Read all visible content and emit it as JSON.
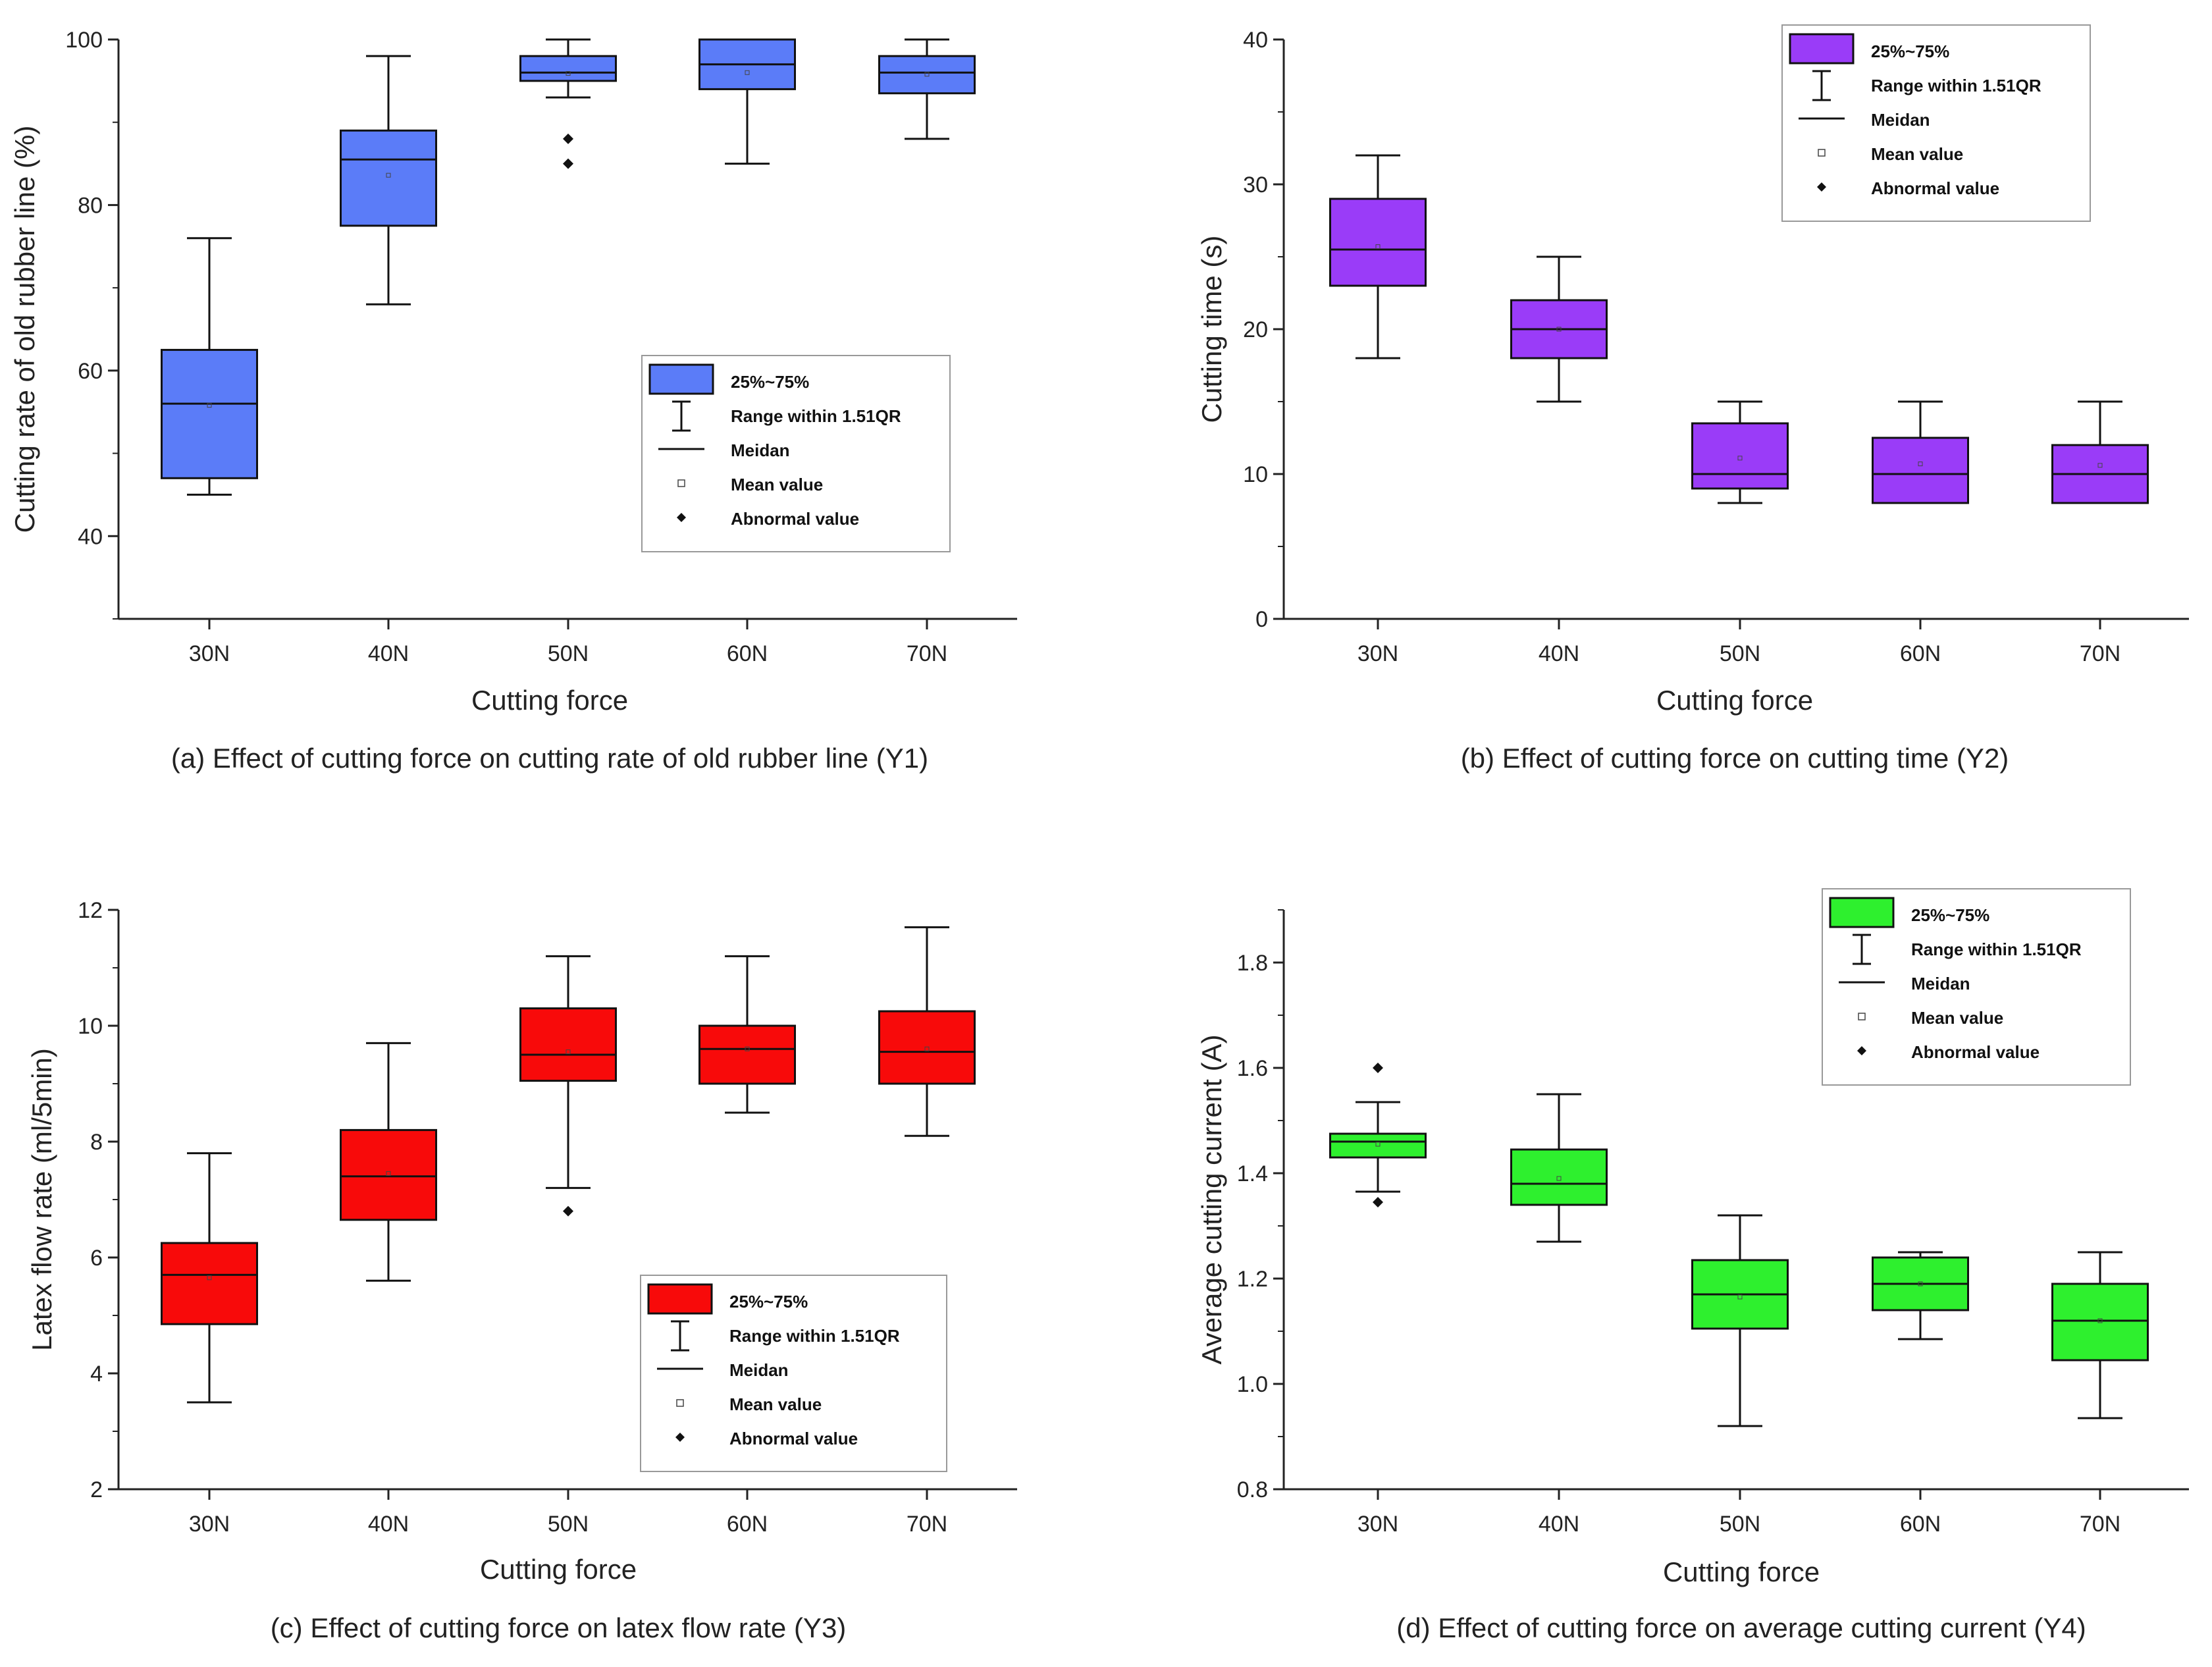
{
  "chart_data": [
    {
      "type": "box",
      "panel": "a",
      "caption": "(a) Effect of  cutting force on cutting rate of old rubber line (Y1)",
      "xlabel": "Cutting force",
      "ylabel": "Cutting rate of old rubber line (%)",
      "ylim": [
        30,
        100
      ],
      "yticks": [
        40,
        60,
        80,
        100
      ],
      "ytick_labels": [
        "40",
        "60",
        "80",
        "100"
      ],
      "minor_step": 10,
      "categories": [
        "30N",
        "40N",
        "50N",
        "60N",
        "70N"
      ],
      "color": "#5b7cf8",
      "boxes": [
        {
          "whisker_low": 45,
          "q1": 47,
          "median": 56,
          "q3": 62.5,
          "whisker_high": 76,
          "mean": 55.8,
          "outliers": []
        },
        {
          "whisker_low": 68,
          "q1": 77.5,
          "median": 85.5,
          "q3": 89,
          "whisker_high": 98,
          "mean": 83.6,
          "outliers": []
        },
        {
          "whisker_low": 93,
          "q1": 95,
          "median": 96,
          "q3": 98,
          "whisker_high": 100,
          "mean": 95.9,
          "outliers": [
            88,
            85
          ]
        },
        {
          "whisker_low": 85,
          "q1": 94,
          "median": 97,
          "q3": 100,
          "whisker_high": 100,
          "mean": 96,
          "outliers": []
        },
        {
          "whisker_low": 88,
          "q1": 93.5,
          "median": 96,
          "q3": 98,
          "whisker_high": 100,
          "mean": 95.8,
          "outliers": []
        }
      ],
      "legend": {
        "placement": "center-right",
        "items": [
          "25%~75%",
          "Range within 1.51QR",
          "Meidan",
          "Mean value",
          "Abnormal value"
        ]
      }
    },
    {
      "type": "box",
      "panel": "b",
      "caption": "(b) Effect of  cutting force on cutting time (Y2)",
      "xlabel": "Cutting force",
      "ylabel": "Cutting time (s)",
      "ylim": [
        0,
        40
      ],
      "yticks": [
        0,
        10,
        20,
        30,
        40
      ],
      "ytick_labels": [
        "0",
        "10",
        "20",
        "30",
        "40"
      ],
      "minor_step": 5,
      "categories": [
        "30N",
        "40N",
        "50N",
        "60N",
        "70N"
      ],
      "color": "#9a3cf8",
      "boxes": [
        {
          "whisker_low": 18,
          "q1": 23,
          "median": 25.5,
          "q3": 29,
          "whisker_high": 32,
          "mean": 25.7,
          "outliers": []
        },
        {
          "whisker_low": 15,
          "q1": 18,
          "median": 20,
          "q3": 22,
          "whisker_high": 25,
          "mean": 20,
          "outliers": []
        },
        {
          "whisker_low": 8,
          "q1": 9,
          "median": 10,
          "q3": 13.5,
          "whisker_high": 15,
          "mean": 11.1,
          "outliers": []
        },
        {
          "whisker_low": 8,
          "q1": 8,
          "median": 10,
          "q3": 12.5,
          "whisker_high": 15,
          "mean": 10.7,
          "outliers": []
        },
        {
          "whisker_low": 8,
          "q1": 8,
          "median": 10,
          "q3": 12,
          "whisker_high": 15,
          "mean": 10.6,
          "outliers": []
        }
      ],
      "legend": {
        "placement": "top-right",
        "items": [
          "25%~75%",
          "Range within 1.51QR",
          "Meidan",
          "Mean value",
          "Abnormal value"
        ]
      }
    },
    {
      "type": "box",
      "panel": "c",
      "caption": "(c) Effect of  cutting force on latex flow rate (Y3)",
      "xlabel": "Cutting force",
      "ylabel": "Latex flow rate (ml/5min)",
      "ylim": [
        2,
        12
      ],
      "yticks": [
        2,
        4,
        6,
        8,
        10,
        12
      ],
      "ytick_labels": [
        "2",
        "4",
        "6",
        "8",
        "10",
        "12"
      ],
      "minor_step": 1,
      "categories": [
        "30N",
        "40N",
        "50N",
        "60N",
        "70N"
      ],
      "color": "#f80a0a",
      "boxes": [
        {
          "whisker_low": 3.5,
          "q1": 4.85,
          "median": 5.7,
          "q3": 6.25,
          "whisker_high": 7.8,
          "mean": 5.65,
          "outliers": []
        },
        {
          "whisker_low": 5.6,
          "q1": 6.65,
          "median": 7.4,
          "q3": 8.2,
          "whisker_high": 9.7,
          "mean": 7.45,
          "outliers": []
        },
        {
          "whisker_low": 7.2,
          "q1": 9.05,
          "median": 9.5,
          "q3": 10.3,
          "whisker_high": 11.2,
          "mean": 9.55,
          "outliers": [
            6.8
          ]
        },
        {
          "whisker_low": 8.5,
          "q1": 9,
          "median": 9.6,
          "q3": 10,
          "whisker_high": 11.2,
          "mean": 9.6,
          "outliers": []
        },
        {
          "whisker_low": 8.1,
          "q1": 9,
          "median": 9.55,
          "q3": 10.25,
          "whisker_high": 11.7,
          "mean": 9.6,
          "outliers": []
        }
      ],
      "legend": {
        "placement": "center-right",
        "items": [
          "25%~75%",
          "Range within 1.51QR",
          "Meidan",
          "Mean value",
          "Abnormal value"
        ]
      }
    },
    {
      "type": "box",
      "panel": "d",
      "caption": "(d) Effect of  cutting force on average cutting current (Y4)",
      "xlabel": "Cutting force",
      "ylabel": "Average cutting current (A)",
      "ylim": [
        0.8,
        1.9
      ],
      "yticks": [
        0.8,
        1.0,
        1.2,
        1.4,
        1.6,
        1.8
      ],
      "ytick_labels": [
        "0.8",
        "1.0",
        "1.2",
        "1.4",
        "1.6",
        "1.8"
      ],
      "minor_step": 0.1,
      "categories": [
        "30N",
        "40N",
        "50N",
        "60N",
        "70N"
      ],
      "color": "#2ef02e",
      "boxes": [
        {
          "whisker_low": 1.365,
          "q1": 1.43,
          "median": 1.46,
          "q3": 1.475,
          "whisker_high": 1.535,
          "mean": 1.455,
          "outliers": [
            1.6,
            1.345
          ]
        },
        {
          "whisker_low": 1.27,
          "q1": 1.34,
          "median": 1.38,
          "q3": 1.445,
          "whisker_high": 1.55,
          "mean": 1.39,
          "outliers": []
        },
        {
          "whisker_low": 0.92,
          "q1": 1.105,
          "median": 1.17,
          "q3": 1.235,
          "whisker_high": 1.32,
          "mean": 1.165,
          "outliers": []
        },
        {
          "whisker_low": 1.085,
          "q1": 1.14,
          "median": 1.19,
          "q3": 1.24,
          "whisker_high": 1.25,
          "mean": 1.19,
          "outliers": []
        },
        {
          "whisker_low": 0.935,
          "q1": 1.045,
          "median": 1.12,
          "q3": 1.19,
          "whisker_high": 1.25,
          "mean": 1.12,
          "outliers": []
        }
      ],
      "legend": {
        "placement": "top-right",
        "items": [
          "25%~75%",
          "Range within 1.51QR",
          "Meidan",
          "Mean value",
          "Abnormal value"
        ]
      }
    }
  ]
}
